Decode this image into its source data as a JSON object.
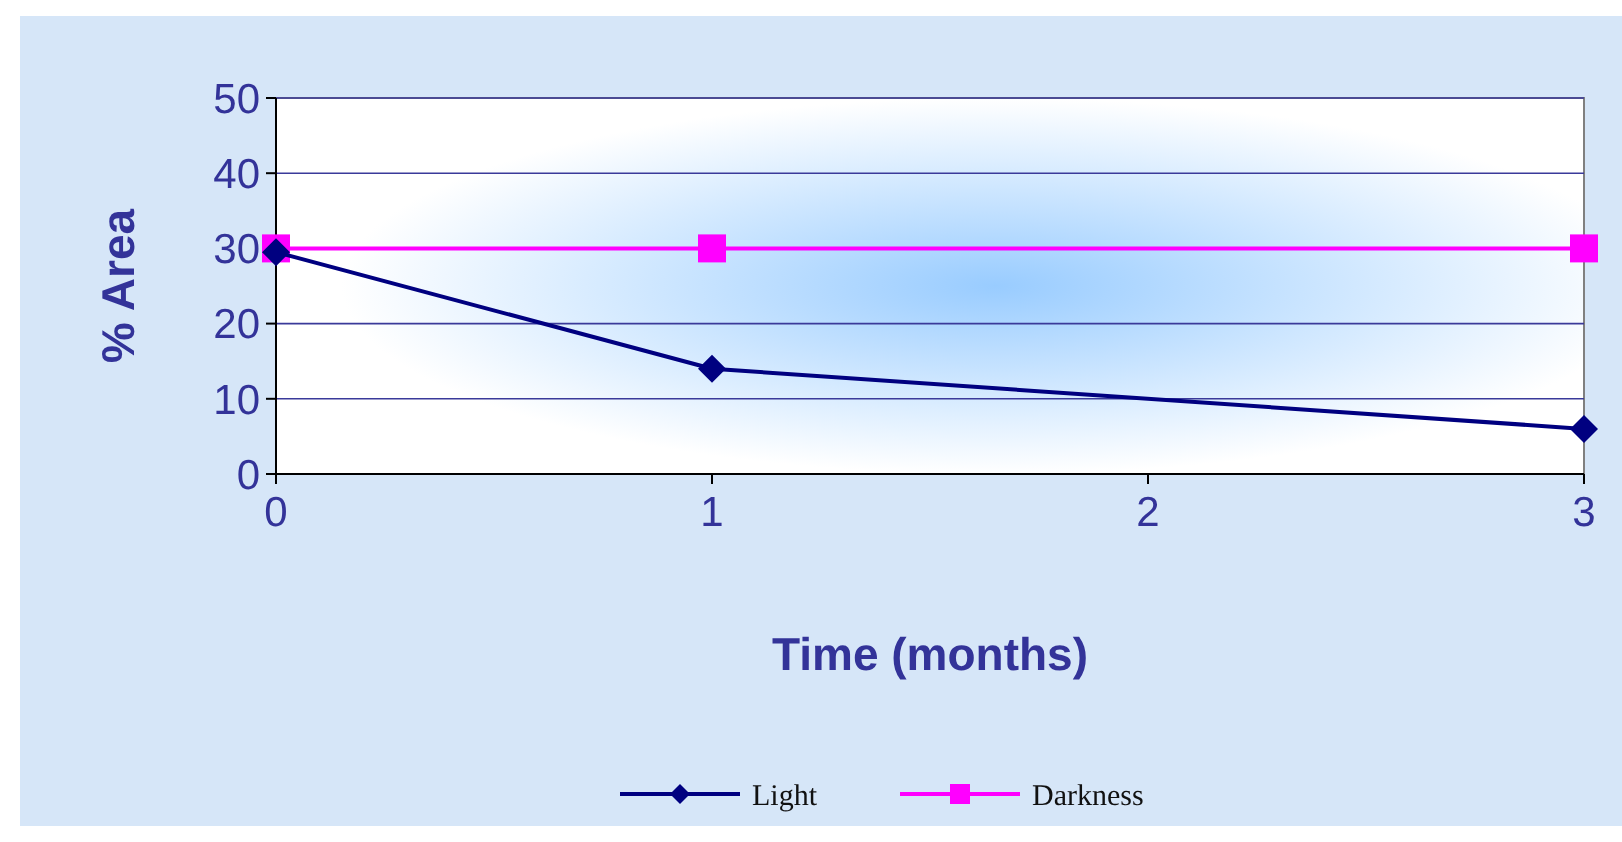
{
  "chart_data": {
    "type": "line",
    "xlabel": "Time (months)",
    "ylabel": "% Area",
    "x": [
      0,
      1,
      3
    ],
    "series": [
      {
        "name": "Light",
        "color": "#000080",
        "values": [
          29.5,
          14,
          6
        ],
        "marker": "diamond"
      },
      {
        "name": "Darkness",
        "color": "#ff00ff",
        "values": [
          30,
          30,
          30
        ],
        "marker": "square"
      }
    ],
    "xlim": [
      0,
      3
    ],
    "xticks": [
      0,
      1,
      2,
      3
    ],
    "ylim": [
      0,
      50
    ],
    "yticks": [
      0,
      10,
      20,
      30,
      40,
      50
    ],
    "grid": "y",
    "legend": "bottom",
    "line_style": "solid"
  }
}
